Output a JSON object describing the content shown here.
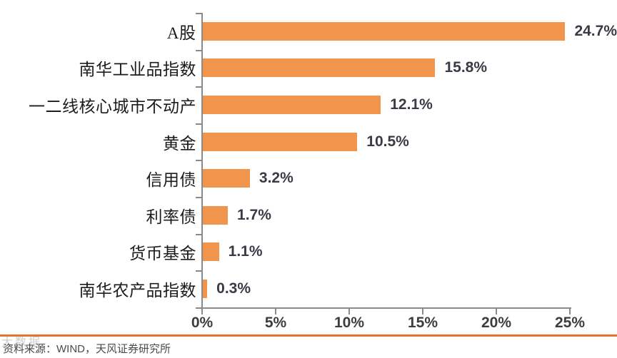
{
  "chart_data": {
    "type": "bar",
    "orientation": "horizontal",
    "title": "",
    "xlabel": "",
    "ylabel": "",
    "categories": [
      "A股",
      "南华工业品指数",
      "一二线核心城市不动产",
      "黄金",
      "信用债",
      "利率债",
      "货币基金",
      "南华农产品指数"
    ],
    "values": [
      24.7,
      15.8,
      12.1,
      10.5,
      3.2,
      1.7,
      1.1,
      0.3
    ],
    "value_labels": [
      "24.7%",
      "15.8%",
      "12.1%",
      "10.5%",
      "3.2%",
      "1.7%",
      "1.1%",
      "0.3%"
    ],
    "xlim": [
      0,
      25
    ],
    "x_ticks": [
      "0%",
      "5%",
      "10%",
      "15%",
      "20%",
      "25%"
    ],
    "grid": false,
    "legend": false,
    "data_labels": true,
    "bar_color": "#F2954C",
    "axis_color": "#8A8A8A"
  },
  "footer": {
    "source_text": "资料来源：WIND，天风证券研究所",
    "divider_color": "#E2762C",
    "watermark_text": "大数据"
  }
}
